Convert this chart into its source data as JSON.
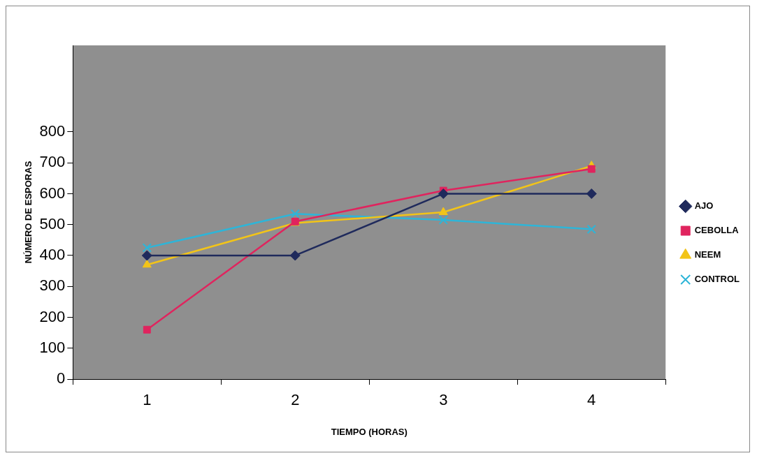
{
  "chart_data": {
    "type": "line",
    "xlabel": "TIEMPO (HORAS)",
    "ylabel": "NÚMERO DE ESPORAS",
    "categories": [
      "1",
      "2",
      "3",
      "4"
    ],
    "series": [
      {
        "name": "AJO",
        "color": "#1f2a5c",
        "marker": "diamond",
        "values": [
          400,
          400,
          600,
          600
        ]
      },
      {
        "name": "CEBOLLA",
        "color": "#e0245e",
        "marker": "square",
        "values": [
          160,
          510,
          610,
          680
        ]
      },
      {
        "name": "NEEM",
        "color": "#f2c418",
        "marker": "triangle",
        "values": [
          370,
          505,
          540,
          690
        ]
      },
      {
        "name": "CONTROL",
        "color": "#2eb5d8",
        "marker": "cross",
        "values": [
          425,
          535,
          515,
          485
        ]
      }
    ],
    "ylim": [
      0,
      1080
    ],
    "yticks": [
      0,
      100,
      200,
      300,
      400,
      500,
      600,
      700,
      800
    ],
    "grid": false,
    "legend": "right",
    "line_style": "solid"
  }
}
